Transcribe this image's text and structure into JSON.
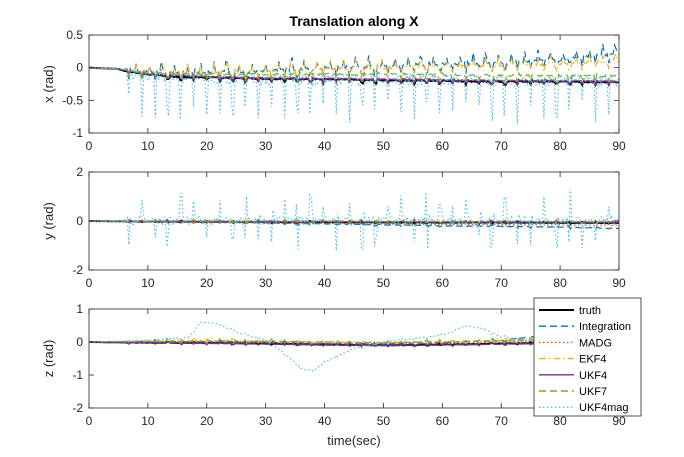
{
  "chart_data": [
    {
      "type": "line",
      "title": "Translation along X",
      "ylabel": "x (rad)",
      "xlabel": "",
      "xlim": [
        0,
        90
      ],
      "ylim": [
        -1,
        0.5
      ],
      "xticks": [
        "0",
        "10",
        "20",
        "30",
        "40",
        "50",
        "60",
        "70",
        "80",
        "90"
      ],
      "yticks": [
        "-1",
        "-0.5",
        "0",
        "0.5"
      ],
      "grid": false,
      "series": [
        {
          "name": "truth",
          "color": "#000000",
          "style": "solid",
          "points": [
            [
              0,
              0.0
            ],
            [
              5,
              -0.02
            ],
            [
              6,
              -0.05
            ],
            [
              10,
              -0.1
            ],
            [
              15,
              -0.14
            ],
            [
              20,
              -0.15
            ],
            [
              25,
              -0.16
            ],
            [
              30,
              -0.17
            ],
            [
              35,
              -0.17
            ],
            [
              40,
              -0.18
            ],
            [
              45,
              -0.18
            ],
            [
              50,
              -0.19
            ],
            [
              55,
              -0.2
            ],
            [
              60,
              -0.2
            ],
            [
              65,
              -0.21
            ],
            [
              70,
              -0.21
            ],
            [
              75,
              -0.21
            ],
            [
              80,
              -0.21
            ],
            [
              85,
              -0.22
            ],
            [
              90,
              -0.22
            ]
          ]
        },
        {
          "name": "Integration",
          "color": "#0072BD",
          "style": "dashed",
          "points": [
            [
              0,
              0.0
            ],
            [
              5,
              -0.02
            ],
            [
              10,
              -0.07
            ],
            [
              20,
              -0.07
            ],
            [
              30,
              -0.05
            ],
            [
              40,
              0.0
            ],
            [
              50,
              0.02
            ],
            [
              60,
              0.05
            ],
            [
              70,
              0.08
            ],
            [
              80,
              0.12
            ],
            [
              90,
              0.22
            ]
          ]
        },
        {
          "name": "MADG",
          "color": "#D95319",
          "style": "dotted",
          "points": [
            [
              0,
              0.0
            ],
            [
              5,
              -0.02
            ],
            [
              10,
              -0.09
            ],
            [
              20,
              -0.13
            ],
            [
              30,
              -0.15
            ],
            [
              40,
              -0.16
            ],
            [
              50,
              -0.17
            ],
            [
              60,
              -0.18
            ],
            [
              70,
              -0.19
            ],
            [
              80,
              -0.19
            ],
            [
              90,
              -0.2
            ]
          ]
        },
        {
          "name": "EKF4",
          "color": "#EDB120",
          "style": "dashdot",
          "points": [
            [
              0,
              0.0
            ],
            [
              5,
              -0.02
            ],
            [
              10,
              -0.06
            ],
            [
              20,
              -0.07
            ],
            [
              30,
              -0.05
            ],
            [
              40,
              -0.02
            ],
            [
              50,
              0.0
            ],
            [
              60,
              0.02
            ],
            [
              70,
              0.04
            ],
            [
              80,
              0.06
            ],
            [
              90,
              0.1
            ]
          ]
        },
        {
          "name": "UKF4",
          "color": "#7E2F8E",
          "style": "solid",
          "points": [
            [
              0,
              0.0
            ],
            [
              5,
              -0.02
            ],
            [
              10,
              -0.1
            ],
            [
              20,
              -0.14
            ],
            [
              30,
              -0.16
            ],
            [
              40,
              -0.17
            ],
            [
              50,
              -0.18
            ],
            [
              60,
              -0.19
            ],
            [
              70,
              -0.2
            ],
            [
              80,
              -0.2
            ],
            [
              90,
              -0.21
            ]
          ]
        },
        {
          "name": "UKF7",
          "color": "#77AC30",
          "style": "dashed",
          "points": [
            [
              0,
              0.0
            ],
            [
              5,
              -0.02
            ],
            [
              10,
              -0.08
            ],
            [
              20,
              -0.1
            ],
            [
              30,
              -0.1
            ],
            [
              40,
              -0.1
            ],
            [
              50,
              -0.1
            ],
            [
              60,
              -0.11
            ],
            [
              70,
              -0.12
            ],
            [
              80,
              -0.12
            ],
            [
              90,
              -0.13
            ]
          ]
        },
        {
          "name": "UKF4mag",
          "color": "#4DBEEE",
          "style": "dotted",
          "points": [
            [
              0,
              0.0
            ],
            [
              5,
              -0.02
            ],
            [
              10,
              -0.12
            ],
            [
              20,
              -0.15
            ],
            [
              30,
              -0.17
            ],
            [
              40,
              -0.17
            ],
            [
              50,
              -0.18
            ],
            [
              60,
              -0.18
            ],
            [
              70,
              -0.19
            ],
            [
              80,
              -0.2
            ],
            [
              90,
              -0.2
            ]
          ]
        }
      ]
    },
    {
      "type": "line",
      "title": "",
      "ylabel": "y (rad)",
      "xlabel": "",
      "xlim": [
        0,
        90
      ],
      "ylim": [
        -2,
        2
      ],
      "xticks": [
        "0",
        "10",
        "20",
        "30",
        "40",
        "50",
        "60",
        "70",
        "80",
        "90"
      ],
      "yticks": [
        "-2",
        "0",
        "2"
      ],
      "grid": false,
      "series": [
        {
          "name": "truth",
          "color": "#000000",
          "style": "solid",
          "points": [
            [
              0,
              0.0
            ],
            [
              10,
              -0.02
            ],
            [
              20,
              -0.03
            ],
            [
              30,
              -0.04
            ],
            [
              40,
              -0.05
            ],
            [
              50,
              -0.05
            ],
            [
              60,
              -0.06
            ],
            [
              70,
              -0.06
            ],
            [
              80,
              -0.07
            ],
            [
              90,
              -0.08
            ]
          ]
        },
        {
          "name": "Integration",
          "color": "#0072BD",
          "style": "dashed",
          "points": [
            [
              0,
              0.0
            ],
            [
              10,
              -0.02
            ],
            [
              20,
              -0.05
            ],
            [
              30,
              -0.08
            ],
            [
              40,
              -0.12
            ],
            [
              50,
              -0.15
            ],
            [
              60,
              -0.2
            ],
            [
              70,
              -0.22
            ],
            [
              80,
              -0.25
            ],
            [
              90,
              -0.3
            ]
          ]
        },
        {
          "name": "MADG",
          "color": "#D95319",
          "style": "dotted",
          "points": [
            [
              0,
              0.0
            ],
            [
              10,
              -0.03
            ],
            [
              20,
              -0.06
            ],
            [
              30,
              -0.08
            ],
            [
              40,
              -0.1
            ],
            [
              50,
              -0.12
            ],
            [
              60,
              -0.14
            ],
            [
              70,
              -0.15
            ],
            [
              80,
              -0.16
            ],
            [
              90,
              -0.18
            ]
          ]
        },
        {
          "name": "EKF4",
          "color": "#EDB120",
          "style": "dashdot",
          "points": [
            [
              0,
              0.0
            ],
            [
              10,
              0.0
            ],
            [
              20,
              0.0
            ],
            [
              30,
              -0.01
            ],
            [
              40,
              -0.01
            ],
            [
              50,
              -0.02
            ],
            [
              60,
              -0.02
            ],
            [
              70,
              -0.03
            ],
            [
              80,
              -0.03
            ],
            [
              90,
              -0.04
            ]
          ]
        },
        {
          "name": "UKF4",
          "color": "#7E2F8E",
          "style": "solid",
          "points": [
            [
              0,
              0.0
            ],
            [
              10,
              -0.01
            ],
            [
              20,
              -0.02
            ],
            [
              30,
              -0.03
            ],
            [
              40,
              -0.03
            ],
            [
              50,
              -0.04
            ],
            [
              60,
              -0.04
            ],
            [
              70,
              -0.05
            ],
            [
              80,
              -0.05
            ],
            [
              90,
              -0.06
            ]
          ]
        },
        {
          "name": "UKF7",
          "color": "#77AC30",
          "style": "dashed",
          "points": [
            [
              0,
              0.0
            ],
            [
              10,
              0.0
            ],
            [
              20,
              0.0
            ],
            [
              30,
              0.0
            ],
            [
              40,
              0.0
            ],
            [
              50,
              -0.01
            ],
            [
              60,
              -0.01
            ],
            [
              70,
              -0.01
            ],
            [
              80,
              -0.02
            ],
            [
              90,
              -0.02
            ]
          ]
        },
        {
          "name": "UKF4mag",
          "color": "#4DBEEE",
          "style": "dotted",
          "points": [
            [
              0,
              0.0
            ],
            [
              10,
              0.0
            ],
            [
              20,
              0.0
            ],
            [
              30,
              0.0
            ],
            [
              40,
              0.0
            ],
            [
              50,
              0.0
            ],
            [
              60,
              0.0
            ],
            [
              70,
              0.0
            ],
            [
              80,
              0.0
            ],
            [
              90,
              0.0
            ]
          ]
        }
      ]
    },
    {
      "type": "line",
      "title": "",
      "ylabel": "z (rad)",
      "xlabel": "time(sec)",
      "xlim": [
        0,
        90
      ],
      "ylim": [
        -2,
        1
      ],
      "xticks": [
        "0",
        "10",
        "20",
        "30",
        "40",
        "50",
        "60",
        "70",
        "80",
        "90"
      ],
      "yticks": [
        "-2",
        "-1",
        "0",
        "1"
      ],
      "grid": false,
      "legend": {
        "placement": "right",
        "entries": [
          "truth",
          "Integration",
          "MADG",
          "EKF4",
          "UKF4",
          "UKF7",
          "UKF4mag"
        ]
      },
      "series": [
        {
          "name": "truth",
          "color": "#000000",
          "style": "solid",
          "points": [
            [
              0,
              0.0
            ],
            [
              10,
              -0.02
            ],
            [
              20,
              -0.03
            ],
            [
              30,
              -0.05
            ],
            [
              40,
              -0.08
            ],
            [
              50,
              -0.1
            ],
            [
              60,
              -0.08
            ],
            [
              70,
              -0.05
            ],
            [
              75,
              -0.04
            ]
          ]
        },
        {
          "name": "Integration",
          "color": "#0072BD",
          "style": "dashed",
          "points": [
            [
              0,
              0.0
            ],
            [
              10,
              0.0
            ],
            [
              20,
              0.02
            ],
            [
              30,
              0.0
            ],
            [
              40,
              -0.05
            ],
            [
              50,
              -0.06
            ],
            [
              60,
              -0.02
            ],
            [
              70,
              0.05
            ],
            [
              75,
              0.15
            ]
          ]
        },
        {
          "name": "MADG",
          "color": "#D95319",
          "style": "dotted",
          "points": [
            [
              0,
              0.0
            ],
            [
              10,
              0.0
            ],
            [
              20,
              0.0
            ],
            [
              30,
              -0.02
            ],
            [
              40,
              -0.04
            ],
            [
              50,
              -0.05
            ],
            [
              60,
              -0.03
            ],
            [
              70,
              0.0
            ],
            [
              75,
              0.02
            ]
          ]
        },
        {
          "name": "EKF4",
          "color": "#EDB120",
          "style": "dashdot",
          "points": [
            [
              0,
              0.0
            ],
            [
              10,
              0.03
            ],
            [
              20,
              0.05
            ],
            [
              30,
              0.03
            ],
            [
              40,
              0.0
            ],
            [
              50,
              -0.02
            ],
            [
              60,
              0.02
            ],
            [
              70,
              0.05
            ],
            [
              75,
              0.08
            ]
          ]
        },
        {
          "name": "UKF4",
          "color": "#7E2F8E",
          "style": "solid",
          "points": [
            [
              0,
              0.0
            ],
            [
              10,
              -0.02
            ],
            [
              20,
              -0.04
            ],
            [
              30,
              -0.06
            ],
            [
              40,
              -0.09
            ],
            [
              50,
              -0.1
            ],
            [
              60,
              -0.09
            ],
            [
              70,
              -0.06
            ],
            [
              75,
              -0.05
            ]
          ]
        },
        {
          "name": "UKF7",
          "color": "#77AC30",
          "style": "dashed",
          "points": [
            [
              0,
              0.0
            ],
            [
              10,
              0.02
            ],
            [
              20,
              0.03
            ],
            [
              30,
              0.02
            ],
            [
              40,
              0.0
            ],
            [
              50,
              -0.02
            ],
            [
              60,
              0.0
            ],
            [
              70,
              0.03
            ],
            [
              75,
              0.05
            ]
          ]
        },
        {
          "name": "UKF4mag",
          "color": "#4DBEEE",
          "style": "dotted",
          "points": [
            [
              0,
              0.0
            ],
            [
              10,
              0.05
            ],
            [
              17,
              0.15
            ],
            [
              19,
              0.6
            ],
            [
              22,
              0.55
            ],
            [
              25,
              0.3
            ],
            [
              30,
              0.05
            ],
            [
              33,
              -0.3
            ],
            [
              36,
              -0.8
            ],
            [
              38,
              -0.9
            ],
            [
              40,
              -0.6
            ],
            [
              45,
              -0.2
            ],
            [
              50,
              0.0
            ],
            [
              55,
              0.1
            ],
            [
              60,
              0.2
            ],
            [
              64,
              0.5
            ],
            [
              67,
              0.4
            ],
            [
              70,
              0.15
            ],
            [
              75,
              0.05
            ]
          ]
        }
      ]
    }
  ]
}
